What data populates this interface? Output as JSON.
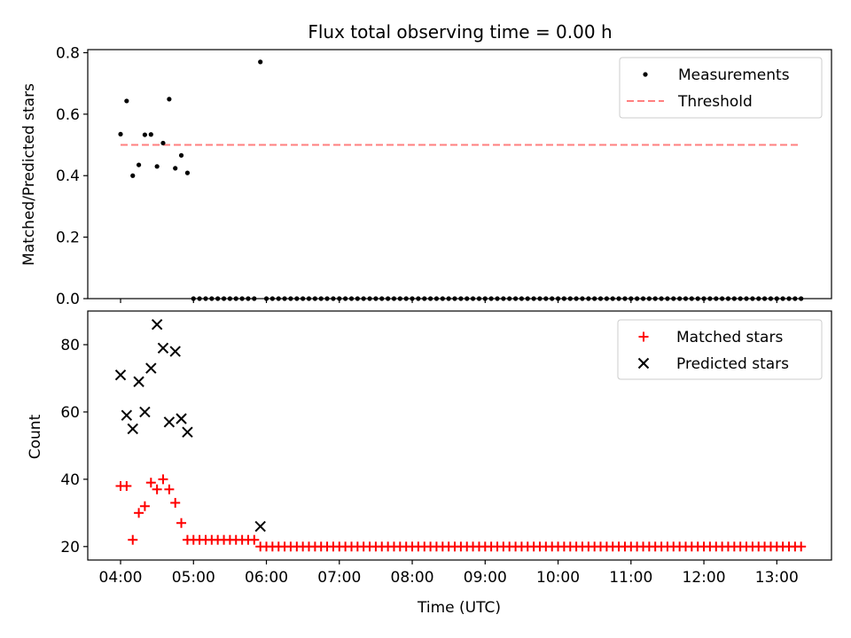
{
  "chart_data": [
    {
      "type": "scatter",
      "title": "Flux total observing time = 0.00 h",
      "ylabel": "Matched/Predicted stars",
      "xlabel": "",
      "ylim": [
        0,
        0.81
      ],
      "yticks": [
        0.0,
        0.2,
        0.4,
        0.6,
        0.8
      ],
      "ytick_labels": [
        "0.0",
        "0.2",
        "0.4",
        "0.6",
        "0.8"
      ],
      "legend": {
        "position": "top-right",
        "entries": [
          "Measurements",
          "Threshold"
        ]
      },
      "colors": {
        "measurements": "#000000",
        "threshold": "#ff7f7f"
      },
      "threshold": {
        "value": 0.5,
        "x_start": 4.0,
        "x_end": 13.33
      },
      "measurements": {
        "x": [
          4.0,
          4.083,
          4.167,
          4.25,
          4.333,
          4.417,
          4.5,
          4.583,
          4.667,
          4.75,
          4.833,
          4.917,
          5.0,
          5.083,
          5.167,
          5.25,
          5.333,
          5.417,
          5.5,
          5.583,
          5.667,
          5.75,
          5.833,
          5.917,
          6.0,
          6.083,
          6.167,
          6.25,
          6.333,
          6.417,
          6.5,
          6.583,
          6.667,
          6.75,
          6.833,
          6.917,
          7.0,
          7.083,
          7.167,
          7.25,
          7.333,
          7.417,
          7.5,
          7.583,
          7.667,
          7.75,
          7.833,
          7.917,
          8.0,
          8.083,
          8.167,
          8.25,
          8.333,
          8.417,
          8.5,
          8.583,
          8.667,
          8.75,
          8.833,
          8.917,
          9.0,
          9.083,
          9.167,
          9.25,
          9.333,
          9.417,
          9.5,
          9.583,
          9.667,
          9.75,
          9.833,
          9.917,
          10.0,
          10.083,
          10.167,
          10.25,
          10.333,
          10.417,
          10.5,
          10.583,
          10.667,
          10.75,
          10.833,
          10.917,
          11.0,
          11.083,
          11.167,
          11.25,
          11.333,
          11.417,
          11.5,
          11.583,
          11.667,
          11.75,
          11.833,
          11.917,
          12.0,
          12.083,
          12.167,
          12.25,
          12.333,
          12.417,
          12.5,
          12.583,
          12.667,
          12.75,
          12.833,
          12.917,
          13.0,
          13.083,
          13.167,
          13.25,
          13.333
        ],
        "y": [
          0.535,
          0.643,
          0.4,
          0.435,
          0.533,
          0.534,
          0.43,
          0.506,
          0.649,
          0.424,
          0.466,
          0.409,
          0,
          0,
          0,
          0,
          0,
          0,
          0,
          0,
          0,
          0,
          0,
          0.77,
          0,
          0,
          0,
          0,
          0,
          0,
          0,
          0,
          0,
          0,
          0,
          0,
          0,
          0,
          0,
          0,
          0,
          0,
          0,
          0,
          0,
          0,
          0,
          0,
          0,
          0,
          0,
          0,
          0,
          0,
          0,
          0,
          0,
          0,
          0,
          0,
          0,
          0,
          0,
          0,
          0,
          0,
          0,
          0,
          0,
          0,
          0,
          0,
          0,
          0,
          0,
          0,
          0,
          0,
          0,
          0,
          0,
          0,
          0,
          0,
          0,
          0,
          0,
          0,
          0,
          0,
          0,
          0,
          0,
          0,
          0,
          0,
          0,
          0,
          0,
          0,
          0,
          0,
          0,
          0,
          0,
          0,
          0,
          0,
          0,
          0,
          0,
          0,
          0
        ]
      }
    },
    {
      "type": "scatter",
      "title": "",
      "ylabel": "Count",
      "xlabel": "Time (UTC)",
      "xlim": [
        3.55,
        13.75
      ],
      "ylim": [
        16,
        90
      ],
      "yticks": [
        20,
        40,
        60,
        80
      ],
      "ytick_labels": [
        "20",
        "40",
        "60",
        "80"
      ],
      "xticks": [
        4,
        5,
        6,
        7,
        8,
        9,
        10,
        11,
        12,
        13
      ],
      "xtick_labels": [
        "04:00",
        "05:00",
        "06:00",
        "07:00",
        "08:00",
        "09:00",
        "10:00",
        "11:00",
        "12:00",
        "13:00"
      ],
      "legend": {
        "position": "top-right",
        "entries": [
          "Matched stars",
          "Predicted stars"
        ]
      },
      "colors": {
        "matched": "#ff0000",
        "predicted": "#000000"
      },
      "matched": {
        "x": [
          4.0,
          4.083,
          4.167,
          4.25,
          4.333,
          4.417,
          4.5,
          4.583,
          4.667,
          4.75,
          4.833,
          4.917,
          5.0,
          5.083,
          5.167,
          5.25,
          5.333,
          5.417,
          5.5,
          5.583,
          5.667,
          5.75,
          5.833,
          5.917,
          6.0,
          6.083,
          6.167,
          6.25,
          6.333,
          6.417,
          6.5,
          6.583,
          6.667,
          6.75,
          6.833,
          6.917,
          7.0,
          7.083,
          7.167,
          7.25,
          7.333,
          7.417,
          7.5,
          7.583,
          7.667,
          7.75,
          7.833,
          7.917,
          8.0,
          8.083,
          8.167,
          8.25,
          8.333,
          8.417,
          8.5,
          8.583,
          8.667,
          8.75,
          8.833,
          8.917,
          9.0,
          9.083,
          9.167,
          9.25,
          9.333,
          9.417,
          9.5,
          9.583,
          9.667,
          9.75,
          9.833,
          9.917,
          10.0,
          10.083,
          10.167,
          10.25,
          10.333,
          10.417,
          10.5,
          10.583,
          10.667,
          10.75,
          10.833,
          10.917,
          11.0,
          11.083,
          11.167,
          11.25,
          11.333,
          11.417,
          11.5,
          11.583,
          11.667,
          11.75,
          11.833,
          11.917,
          12.0,
          12.083,
          12.167,
          12.25,
          12.333,
          12.417,
          12.5,
          12.583,
          12.667,
          12.75,
          12.833,
          12.917,
          13.0,
          13.083,
          13.167,
          13.25,
          13.333
        ],
        "y": [
          38,
          38,
          22,
          30,
          32,
          39,
          37,
          40,
          37,
          33,
          27,
          22,
          22,
          22,
          22,
          22,
          22,
          22,
          22,
          22,
          22,
          22,
          22,
          20,
          20,
          20,
          20,
          20,
          20,
          20,
          20,
          20,
          20,
          20,
          20,
          20,
          20,
          20,
          20,
          20,
          20,
          20,
          20,
          20,
          20,
          20,
          20,
          20,
          20,
          20,
          20,
          20,
          20,
          20,
          20,
          20,
          20,
          20,
          20,
          20,
          20,
          20,
          20,
          20,
          20,
          20,
          20,
          20,
          20,
          20,
          20,
          20,
          20,
          20,
          20,
          20,
          20,
          20,
          20,
          20,
          20,
          20,
          20,
          20,
          20,
          20,
          20,
          20,
          20,
          20,
          20,
          20,
          20,
          20,
          20,
          20,
          20,
          20,
          20,
          20,
          20,
          20,
          20,
          20,
          20,
          20,
          20,
          20,
          20,
          20,
          20,
          20,
          20
        ]
      },
      "predicted": {
        "x": [
          4.0,
          4.083,
          4.167,
          4.25,
          4.333,
          4.417,
          4.5,
          4.583,
          4.667,
          4.75,
          4.833,
          4.917,
          5.917
        ],
        "y": [
          71,
          59,
          55,
          69,
          60,
          73,
          86,
          79,
          57,
          78,
          58,
          54,
          26
        ]
      }
    }
  ]
}
